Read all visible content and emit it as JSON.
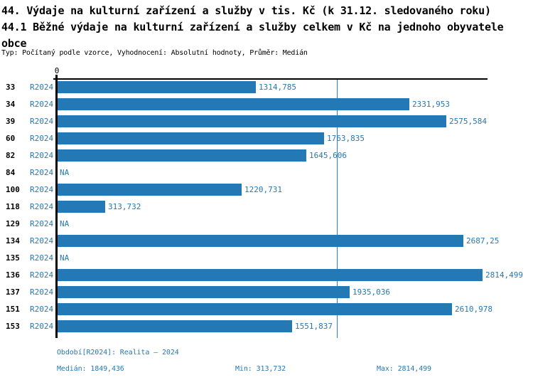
{
  "header": {
    "title_lines": [
      "44. Výdaje na kulturní zařízení a služby v tis. Kč (k 31.12. sledovaného roku)",
      "44.1 Běžné výdaje na kulturní zařízení a služby celkem v Kč na jednoho obyvatele",
      "obce"
    ],
    "subtitle": "Typ: Počítaný podle vzorce, Vyhodnocení: Absolutní hodnoty, Průměr: Medián"
  },
  "chart_data": {
    "type": "bar",
    "orientation": "horizontal",
    "categories": [
      "33",
      "34",
      "39",
      "60",
      "82",
      "84",
      "100",
      "118",
      "129",
      "134",
      "135",
      "136",
      "137",
      "151",
      "153"
    ],
    "series_label": "R2024",
    "values": [
      1314.785,
      2331.953,
      2575.584,
      1763.835,
      1645.606,
      null,
      1220.731,
      313.732,
      null,
      2687.25,
      null,
      2814.499,
      1935.036,
      2610.978,
      1551.837
    ],
    "value_labels": [
      "1314,785",
      "2331,953",
      "2575,584",
      "1763,835",
      "1645,606",
      "NA",
      "1220,731",
      "313,732",
      "NA",
      "2687,25",
      "NA",
      "2814,499",
      "1935,036",
      "2610,978",
      "1551,837"
    ],
    "x_axis": {
      "position": "top",
      "tick_labels": [
        "0"
      ]
    },
    "xlim": [
      0,
      2847.4
    ],
    "grid": false,
    "legend": false,
    "median": 1849.436,
    "min": 313.732,
    "max": 2814.499,
    "colors": {
      "bar": "#2478b4",
      "text": "#2578b4",
      "median_line": "#2e7eb0",
      "axis": "#000000"
    }
  },
  "footer": {
    "period": "Období[R2024]: Realita – 2024",
    "median": "Medián: 1849,436",
    "min": "Min: 313,732",
    "max": "Max: 2814,499"
  }
}
